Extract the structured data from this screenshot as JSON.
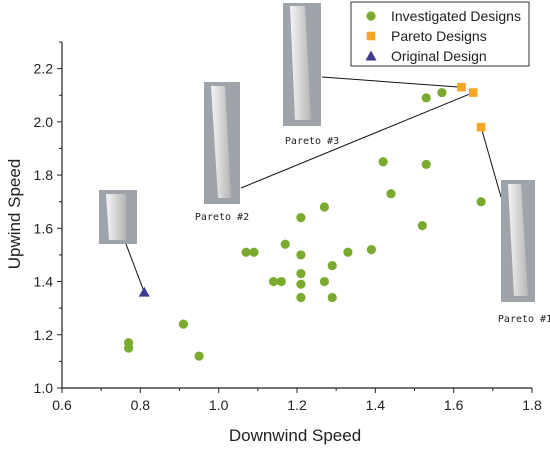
{
  "chart_data": {
    "type": "scatter",
    "xlabel": "Downwind Speed",
    "ylabel": "Upwind Speed",
    "xlim": [
      0.6,
      1.8
    ],
    "ylim": [
      1.0,
      2.3
    ],
    "xticks": [
      "0.6",
      "0.8",
      "1.0",
      "1.2",
      "1.4",
      "1.6",
      "1.8"
    ],
    "yticks": [
      "1.0",
      "1.2",
      "1.4",
      "1.6",
      "1.8",
      "2.0",
      "2.2"
    ],
    "grid": false,
    "legend_position": "top-right",
    "series": [
      {
        "name": "Investigated Designs",
        "marker": "circle",
        "color": "#7bab2e",
        "points": [
          [
            0.77,
            1.17
          ],
          [
            0.77,
            1.15
          ],
          [
            0.91,
            1.24
          ],
          [
            0.95,
            1.12
          ],
          [
            1.07,
            1.51
          ],
          [
            1.09,
            1.51
          ],
          [
            1.14,
            1.4
          ],
          [
            1.16,
            1.4
          ],
          [
            1.17,
            1.54
          ],
          [
            1.21,
            1.64
          ],
          [
            1.21,
            1.5
          ],
          [
            1.21,
            1.43
          ],
          [
            1.21,
            1.39
          ],
          [
            1.21,
            1.34
          ],
          [
            1.27,
            1.68
          ],
          [
            1.27,
            1.4
          ],
          [
            1.29,
            1.46
          ],
          [
            1.29,
            1.34
          ],
          [
            1.33,
            1.51
          ],
          [
            1.39,
            1.52
          ],
          [
            1.42,
            1.85
          ],
          [
            1.44,
            1.73
          ],
          [
            1.52,
            1.61
          ],
          [
            1.53,
            1.84
          ],
          [
            1.53,
            2.09
          ],
          [
            1.57,
            2.11
          ],
          [
            1.67,
            1.7
          ]
        ]
      },
      {
        "name": "Pareto Designs",
        "marker": "square",
        "color": "#f5a623",
        "points": [
          [
            1.62,
            2.13
          ],
          [
            1.65,
            2.11
          ],
          [
            1.67,
            1.98
          ]
        ]
      },
      {
        "name": "Original Design",
        "marker": "triangle",
        "color": "#3f3a8f",
        "points": [
          [
            0.81,
            1.36
          ]
        ]
      }
    ],
    "annotations": [
      {
        "label": "Pareto #3",
        "target": [
          1.62,
          2.13
        ]
      },
      {
        "label": "Pareto #2",
        "target": [
          1.65,
          2.11
        ]
      },
      {
        "label": "Pareto #1",
        "target": [
          1.67,
          1.98
        ]
      },
      {
        "label": "",
        "target": [
          0.81,
          1.36
        ]
      }
    ]
  }
}
